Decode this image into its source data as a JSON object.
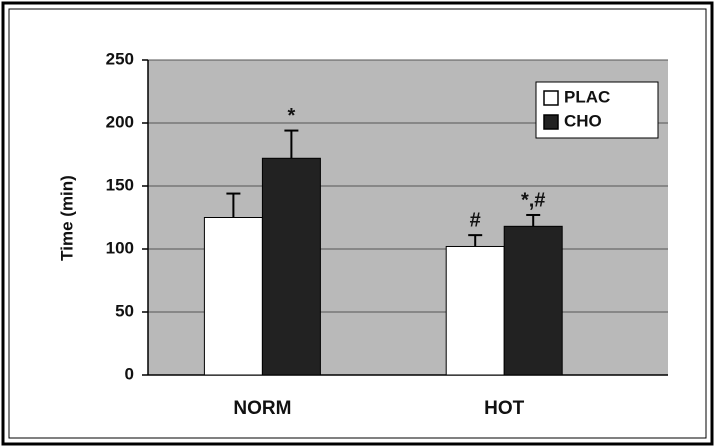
{
  "chart_data": {
    "type": "bar",
    "ylabel": "Time (min)",
    "categories": [
      "NORM",
      "HOT"
    ],
    "series": [
      {
        "name": "PLAC",
        "color": "#ffffff",
        "values": [
          125,
          102
        ],
        "errors": [
          19,
          9
        ],
        "labels": [
          null,
          "#"
        ]
      },
      {
        "name": "CHO",
        "color": "#222222",
        "values": [
          172,
          118
        ],
        "errors": [
          22,
          9
        ],
        "labels": [
          "*",
          "*,#"
        ]
      }
    ],
    "ylim": [
      0,
      250
    ],
    "yticks": [
      0,
      50,
      100,
      150,
      200,
      250
    ],
    "grid": true,
    "legend": "upper right"
  }
}
